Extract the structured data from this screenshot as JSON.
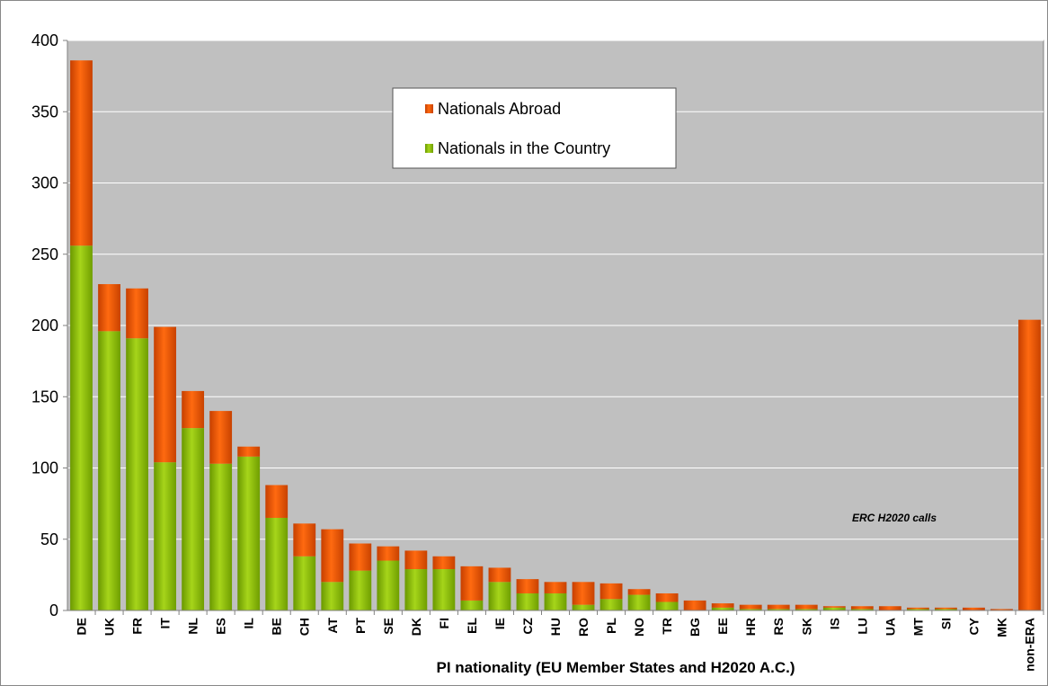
{
  "chart_data": {
    "type": "bar",
    "stacked": true,
    "xlabel": "PI nationality (EU Member States and H2020 A.C.)",
    "ylabel": "",
    "ylim": [
      0,
      400
    ],
    "yticks": [
      0,
      50,
      100,
      150,
      200,
      250,
      300,
      350,
      400
    ],
    "grid": "horizontal",
    "legend_position": "top-center",
    "annotation": "ERC H2020 calls",
    "categories": [
      "DE",
      "UK",
      "FR",
      "IT",
      "NL",
      "ES",
      "IL",
      "BE",
      "CH",
      "AT",
      "PT",
      "SE",
      "DK",
      "FI",
      "EL",
      "IE",
      "CZ",
      "HU",
      "RO",
      "PL",
      "NO",
      "TR",
      "BG",
      "EE",
      "HR",
      "RS",
      "SK",
      "IS",
      "LU",
      "UA",
      "MT",
      "SI",
      "CY",
      "MK",
      "non-ERA"
    ],
    "series": [
      {
        "name": "Nationals in the Country",
        "color": "#8cc000",
        "values": [
          256,
          196,
          191,
          104,
          128,
          103,
          108,
          65,
          38,
          20,
          28,
          35,
          29,
          29,
          7,
          20,
          12,
          12,
          4,
          8,
          11,
          6,
          0,
          2,
          1,
          1,
          1,
          2,
          1,
          0,
          1,
          1,
          0,
          0,
          0
        ]
      },
      {
        "name": "Nationals Abroad",
        "color": "#ee5500",
        "values": [
          130,
          33,
          35,
          95,
          26,
          37,
          7,
          23,
          23,
          37,
          19,
          10,
          13,
          9,
          24,
          10,
          10,
          8,
          16,
          11,
          4,
          6,
          7,
          3,
          3,
          3,
          3,
          1,
          2,
          3,
          1,
          1,
          2,
          1,
          204
        ]
      }
    ],
    "legend_order": [
      "Nationals Abroad",
      "Nationals in the Country"
    ]
  }
}
